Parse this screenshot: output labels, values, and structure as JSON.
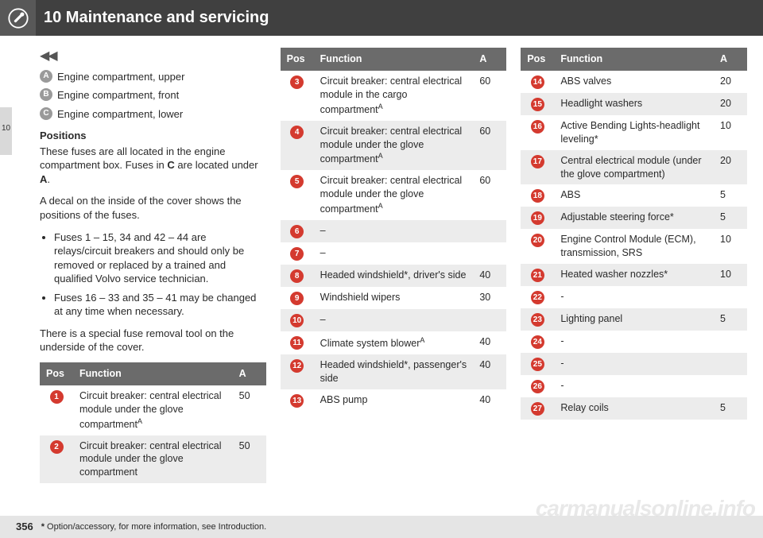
{
  "header": {
    "title": "10 Maintenance and servicing"
  },
  "sideTab": "10",
  "continued_marker": "◀◀",
  "key": [
    {
      "letter": "A",
      "text": "Engine compartment, upper"
    },
    {
      "letter": "B",
      "text": "Engine compartment, front"
    },
    {
      "letter": "C",
      "text": "Engine compartment, lower"
    }
  ],
  "positions_heading": "Positions",
  "positions_intro_a": "These fuses are all located in the engine compartment box. Fuses in ",
  "positions_intro_bold": "C",
  "positions_intro_b": " are located under ",
  "positions_intro_bold2": "A",
  "positions_intro_c": ".",
  "decal_text": "A decal on the inside of the cover shows the positions of the fuses.",
  "bullets": [
    "Fuses 1 – 15, 34 and 42 – 44 are relays/circuit breakers and should only be removed or replaced by a trained and qualified Volvo service technician.",
    "Fuses 16 – 33 and 35 – 41 may be changed at any time when necessary."
  ],
  "tool_text": "There is a special fuse removal tool on the underside of the cover.",
  "table_headers": {
    "pos": "Pos",
    "func": "Function",
    "amp": "A"
  },
  "table1": {
    "rows": [
      {
        "n": "1",
        "func": "Circuit breaker: central electrical module under the glove compartment",
        "sup": "A",
        "a": "50"
      },
      {
        "n": "2",
        "func": "Circuit breaker: central electrical module under the glove compartment",
        "sup": "",
        "a": "50"
      }
    ]
  },
  "table2": {
    "rows": [
      {
        "n": "3",
        "func": "Circuit breaker: central electrical module in the cargo compartment",
        "sup": "A",
        "a": "60"
      },
      {
        "n": "4",
        "func": "Circuit breaker: central electrical module under the glove compartment",
        "sup": "A",
        "a": "60"
      },
      {
        "n": "5",
        "func": "Circuit breaker: central electrical module under the glove compartment",
        "sup": "A",
        "a": "60"
      },
      {
        "n": "6",
        "func": "–",
        "sup": "",
        "a": ""
      },
      {
        "n": "7",
        "func": "–",
        "sup": "",
        "a": ""
      },
      {
        "n": "8",
        "func": "Headed windshield*, driver's side",
        "sup": "",
        "a": "40"
      },
      {
        "n": "9",
        "func": "Windshield wipers",
        "sup": "",
        "a": "30"
      },
      {
        "n": "10",
        "func": "–",
        "sup": "",
        "a": ""
      },
      {
        "n": "11",
        "func": "Climate system blower",
        "sup": "A",
        "a": "40"
      },
      {
        "n": "12",
        "func": "Headed windshield*, passenger's side",
        "sup": "",
        "a": "40"
      },
      {
        "n": "13",
        "func": "ABS pump",
        "sup": "",
        "a": "40"
      }
    ]
  },
  "table3": {
    "rows": [
      {
        "n": "14",
        "func": "ABS valves",
        "sup": "",
        "a": "20"
      },
      {
        "n": "15",
        "func": "Headlight washers",
        "sup": "",
        "a": "20"
      },
      {
        "n": "16",
        "func": "Active Bending Lights-headlight leveling*",
        "sup": "",
        "a": "10"
      },
      {
        "n": "17",
        "func": "Central electrical module (under the glove compartment)",
        "sup": "",
        "a": "20"
      },
      {
        "n": "18",
        "func": "ABS",
        "sup": "",
        "a": "5"
      },
      {
        "n": "19",
        "func": "Adjustable steering force*",
        "sup": "",
        "a": "5"
      },
      {
        "n": "20",
        "func": "Engine Control Module (ECM), transmission, SRS",
        "sup": "",
        "a": "10"
      },
      {
        "n": "21",
        "func": "Heated washer nozzles*",
        "sup": "",
        "a": "10"
      },
      {
        "n": "22",
        "func": "-",
        "sup": "",
        "a": ""
      },
      {
        "n": "23",
        "func": "Lighting panel",
        "sup": "",
        "a": "5"
      },
      {
        "n": "24",
        "func": "-",
        "sup": "",
        "a": ""
      },
      {
        "n": "25",
        "func": "-",
        "sup": "",
        "a": ""
      },
      {
        "n": "26",
        "func": "-",
        "sup": "",
        "a": ""
      },
      {
        "n": "27",
        "func": "Relay coils",
        "sup": "",
        "a": "5"
      }
    ]
  },
  "footer": {
    "page": "356",
    "note_prefix": "*",
    "note_text": " Option/accessory, for more information, see Introduction."
  },
  "watermark": "carmanualsonline.info",
  "colors": {
    "header_bg": "#404040",
    "icon_bg": "#585858",
    "red": "#d43a2f",
    "grey_key": "#9a9a9a",
    "row_alt": "#ececec",
    "footer_bg": "#e5e5e5",
    "th_bg": "#6b6b6b"
  }
}
